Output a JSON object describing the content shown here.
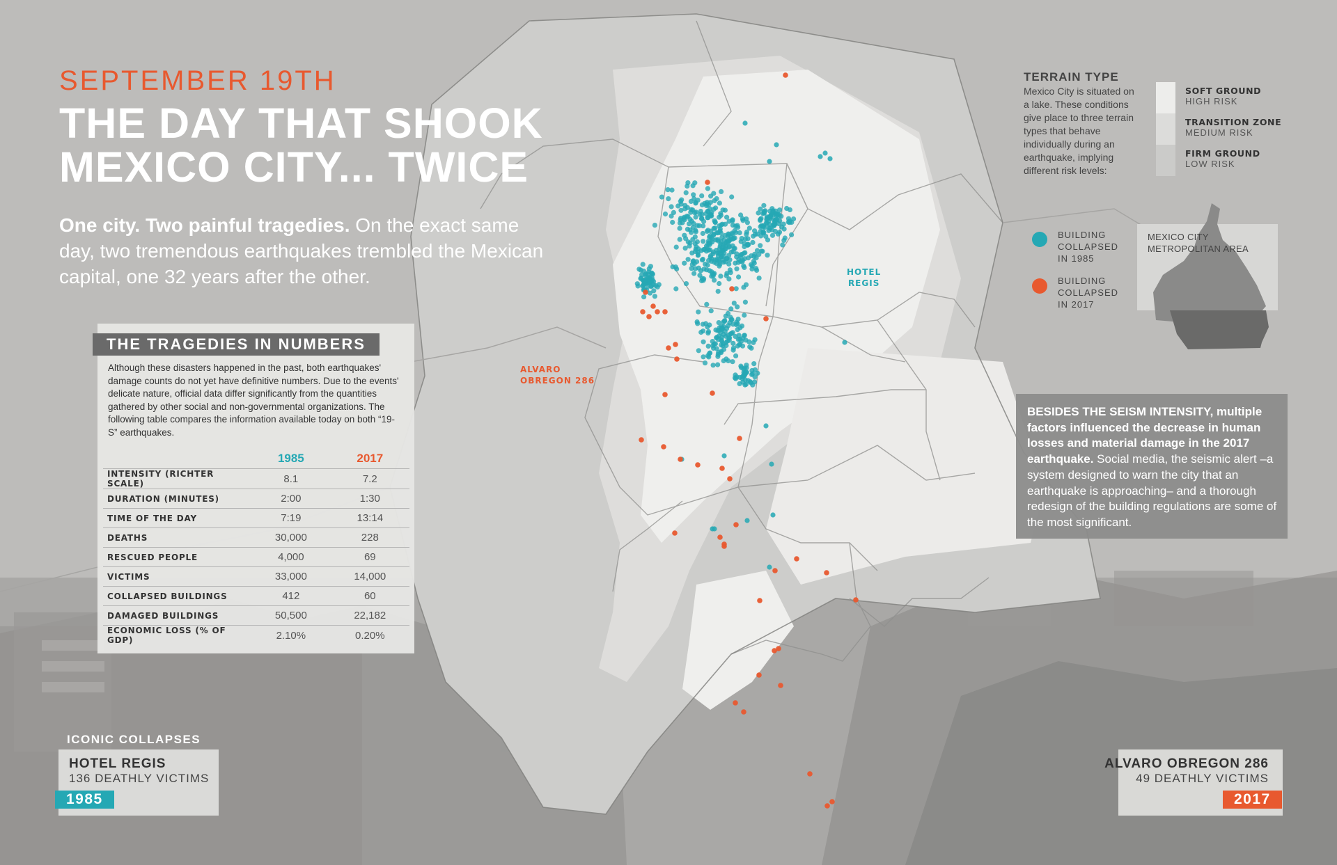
{
  "header": {
    "kicker": "SEPTEMBER 19TH",
    "title_line1": "THE DAY THAT SHOOK",
    "title_line2": "MEXICO CITY... TWICE",
    "intro_bold": "One city. Two painful tragedies.",
    "intro_rest": " On the exact same day, two tremendous earthquakes trembled the Mexican capital, one 32 years after the other."
  },
  "numbers": {
    "title": "THE TRAGEDIES IN NUMBERS",
    "description": "Although these disasters happened in the past, both earthquakes' damage counts do not yet have definitive numbers. Due to the events' delicate nature, official data differ significantly from the quantities gathered by other social and non-governmental organizations. The following table compares the information available today on both “19-S” earthquakes.",
    "columns": [
      "1985",
      "2017"
    ],
    "rows": [
      {
        "label": "INTENSITY (RICHTER SCALE)",
        "y1985": "8.1",
        "y2017": "7.2"
      },
      {
        "label": "DURATION (MINUTES)",
        "y1985": "2:00",
        "y2017": "1:30"
      },
      {
        "label": "TIME OF THE DAY",
        "y1985": "7:19",
        "y2017": "13:14"
      },
      {
        "label": "DEATHS",
        "y1985": "30,000",
        "y2017": "228"
      },
      {
        "label": "RESCUED PEOPLE",
        "y1985": "4,000",
        "y2017": "69"
      },
      {
        "label": "VICTIMS",
        "y1985": "33,000",
        "y2017": "14,000"
      },
      {
        "label": "COLLAPSED BUILDINGS",
        "y1985": "412",
        "y2017": "60"
      },
      {
        "label": "DAMAGED BUILDINGS",
        "y1985": "50,500",
        "y2017": "22,182"
      },
      {
        "label": "ECONOMIC LOSS (% OF GDP)",
        "y1985": "2.10%",
        "y2017": "0.20%"
      }
    ]
  },
  "terrain": {
    "title": "TERRAIN TYPE",
    "description": "Mexico City is situated on a lake. These conditions give place to three terrain types that behave individually during an earthquake, implying different risk levels:",
    "types": [
      {
        "name": "SOFT GROUND",
        "risk": "HIGH RISK",
        "color": "#ededeb"
      },
      {
        "name": "TRANSITION ZONE",
        "risk": "MEDIUM RISK",
        "color": "#dcdcda"
      },
      {
        "name": "FIRM GROUND",
        "risk": "LOW RISK",
        "color": "#cbcbc9"
      }
    ]
  },
  "legend": {
    "collapsed_1985": [
      "BUILDING",
      "COLLAPSED",
      "IN 1985"
    ],
    "collapsed_2017": [
      "BUILDING",
      "COLLAPSED",
      "IN 2017"
    ],
    "color_1985": "#25a8b4",
    "color_2017": "#e8592f"
  },
  "inset": {
    "label_line1": "MEXICO CITY",
    "label_line2": "METROPOLITAN AREA"
  },
  "map_labels": {
    "hotel_regis": [
      "HOTEL",
      "REGIS"
    ],
    "alvaro_obregon": [
      "ALVARO",
      "OBREGON 286"
    ]
  },
  "factors": {
    "bold": "BESIDES THE SEISM INTENSITY, multiple factors influenced the decrease in human losses and material damage in the 2017 earthquake.",
    "rest": " Social media, the seismic alert –a system designed to warn the city that an earthquake is approaching– and a thorough redesign of the building regulations are some of the most significant."
  },
  "iconic": {
    "title": "ICONIC COLLAPSES",
    "left": {
      "name": "HOTEL REGIS",
      "victims": "136 DEATHLY VICTIMS",
      "year": "1985"
    },
    "right": {
      "name": "ALVARO OBREGON 286",
      "victims": "49 DEATHLY VICTIMS",
      "year": "2017"
    }
  }
}
